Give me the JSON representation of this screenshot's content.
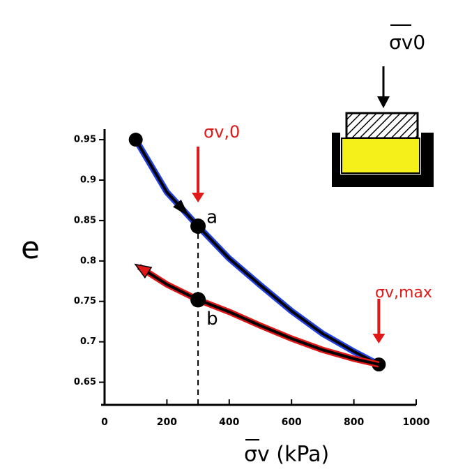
{
  "chart_data": {
    "type": "line",
    "x_label": "σv (kPa)",
    "y_label": "e",
    "xlim": [
      0,
      1000
    ],
    "xticks": [
      0,
      200,
      400,
      600,
      800,
      1000
    ],
    "ylim": [
      0.622,
      0.963
    ],
    "yticks": [
      0.65,
      0.7,
      0.75,
      0.8,
      0.85,
      0.9,
      0.95
    ],
    "series": [
      {
        "color": "#2340e0",
        "x": [
          100,
          200,
          300,
          400,
          500,
          600,
          700,
          800,
          880
        ],
        "values": [
          0.95,
          0.885,
          0.843,
          0.803,
          0.77,
          0.738,
          0.71,
          0.688,
          0.672
        ]
      },
      {
        "color": "#e01818",
        "x": [
          880,
          800,
          700,
          600,
          500,
          400,
          300,
          200,
          110
        ],
        "values": [
          0.672,
          0.679,
          0.69,
          0.704,
          0.72,
          0.737,
          0.752,
          0.771,
          0.793
        ]
      }
    ],
    "points": [
      {
        "label": "a",
        "x": 300,
        "y": 0.843
      },
      {
        "label": "b",
        "x": 300,
        "y": 0.752
      }
    ],
    "annotations": [
      "σv,0",
      "σv,max"
    ],
    "apparatus_label": "σv0"
  }
}
